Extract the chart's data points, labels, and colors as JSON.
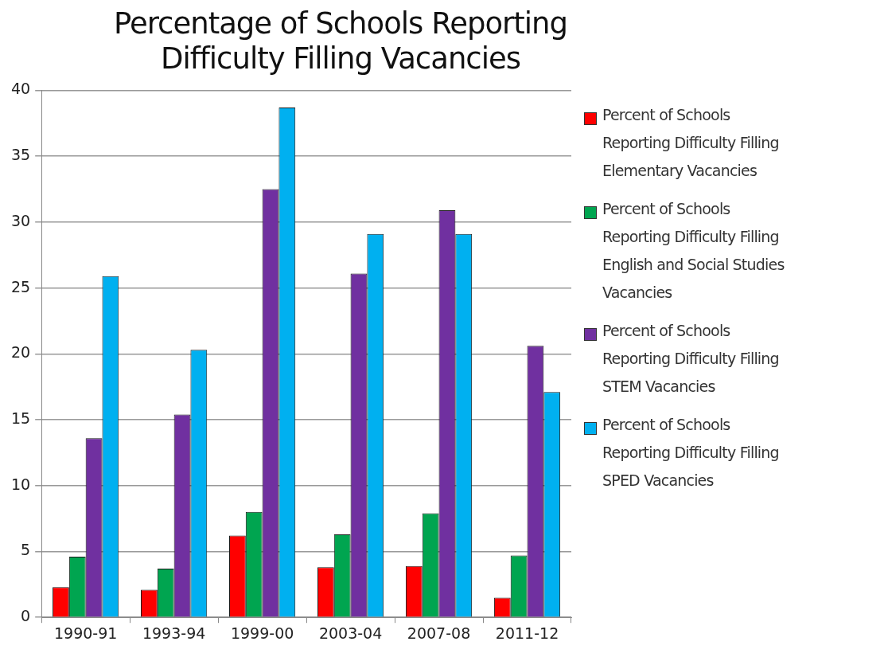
{
  "chart_data": {
    "type": "bar",
    "title": "Percentage of Schools Reporting Difficulty Filling Vacancies",
    "categories": [
      "1990-91",
      "1993-94",
      "1999-00",
      "2003-04",
      "2007-08",
      "2011-12"
    ],
    "series": [
      {
        "name": "Percent of Schools Reporting Difficulty Filling Elementary Vacancies",
        "color": "#ff0000",
        "values": [
          2.3,
          2.1,
          6.2,
          3.8,
          3.9,
          1.5
        ]
      },
      {
        "name": "Percent of Schools Reporting Difficulty Filling English and Social Studies Vacancies",
        "color": "#00a550",
        "values": [
          4.6,
          3.7,
          8.0,
          6.3,
          7.9,
          4.7
        ]
      },
      {
        "name": "Percent of Schools Reporting Difficulty Filling STEM Vacancies",
        "color": "#7030a0",
        "values": [
          13.6,
          15.4,
          32.5,
          26.1,
          30.9,
          20.6
        ]
      },
      {
        "name": "Percent of Schools Reporting Difficulty Filling SPED Vacancies",
        "color": "#00b0f0",
        "values": [
          25.9,
          20.3,
          38.7,
          29.1,
          29.1,
          17.1
        ]
      }
    ],
    "ylim": [
      0,
      40
    ],
    "yticks": [
      0,
      5,
      10,
      15,
      20,
      25,
      30,
      35,
      40
    ],
    "grid": "y",
    "legend": "right"
  }
}
